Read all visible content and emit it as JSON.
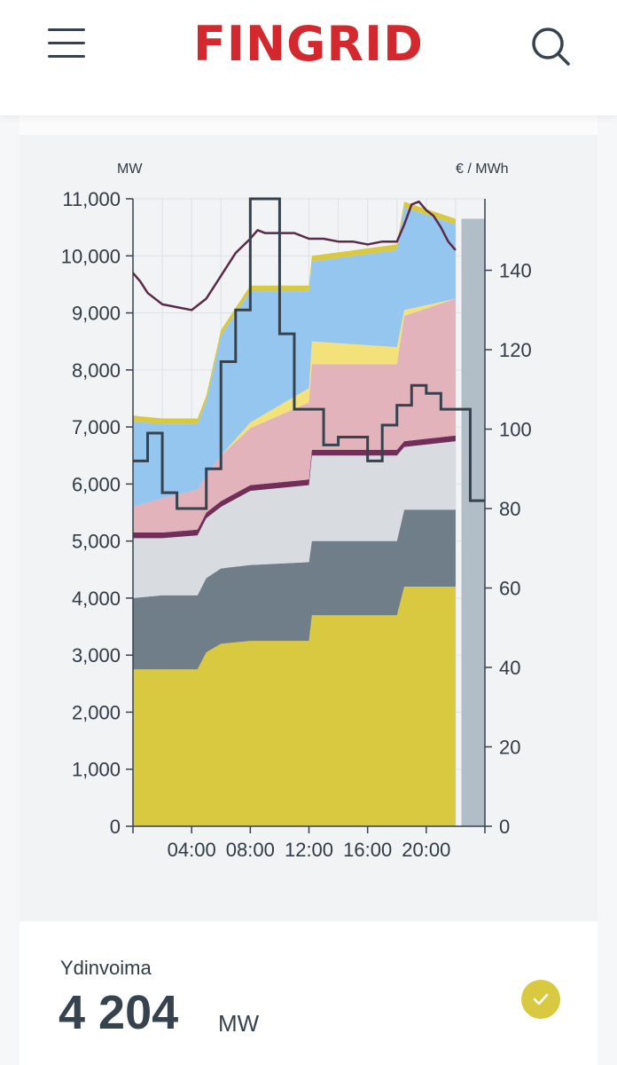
{
  "header": {
    "logo_text": "FINGRID",
    "menu_icon": "hamburger-menu-icon",
    "search_icon": "search-icon"
  },
  "chart_labels": {
    "left_unit": "MW",
    "right_unit": "€ / MWh"
  },
  "chart_data": {
    "type": "area",
    "x_unit": "hour of day",
    "x_ticks": [
      4,
      8,
      12,
      16,
      20
    ],
    "x_tick_labels": [
      "04:00",
      "08:00",
      "12:00",
      "16:00",
      "20:00"
    ],
    "x_range": [
      0,
      24
    ],
    "y_left_ticks": [
      "0",
      "1,000",
      "2,000",
      "3,000",
      "4,000",
      "5,000",
      "6,000",
      "7,000",
      "8,000",
      "9,000",
      "10,000",
      "11,000"
    ],
    "y_left_range": [
      0,
      11000
    ],
    "y_right_ticks": [
      "0",
      "20",
      "40",
      "60",
      "80",
      "100",
      "120",
      "140"
    ],
    "y_right_range": [
      0,
      158
    ],
    "grid": true,
    "x": [
      0,
      2,
      4.4,
      5,
      6,
      8,
      12,
      12.2,
      18,
      18.5,
      22
    ],
    "stack": [
      {
        "color": "#d9c941",
        "values": [
          2750,
          2750,
          2750,
          3050,
          3200,
          3250,
          3250,
          3700,
          3700,
          4200,
          4200
        ]
      },
      {
        "color": "#6f7e88",
        "values": [
          1250,
          1300,
          1300,
          1300,
          1320,
          1330,
          1380,
          1300,
          1300,
          1350,
          1350
        ]
      },
      {
        "color": "#d8dbe0",
        "values": [
          1050,
          1000,
          1050,
          1050,
          1080,
          1300,
          1350,
          1500,
          1500,
          1100,
          1200
        ]
      },
      {
        "color": "#712e5a",
        "values": [
          100,
          100,
          100,
          100,
          100,
          100,
          100,
          100,
          100,
          100,
          100
        ]
      },
      {
        "color": "#e2b3bb",
        "values": [
          450,
          600,
          700,
          650,
          800,
          1000,
          1350,
          1500,
          1500,
          2200,
          2400
        ]
      },
      {
        "color": "#f3e27a",
        "values": [
          0,
          0,
          0,
          0,
          0,
          100,
          250,
          400,
          300,
          100,
          0
        ]
      },
      {
        "color": "#95c6ef",
        "values": [
          1500,
          1300,
          1150,
          1300,
          2100,
          2300,
          1700,
          1400,
          1700,
          1800,
          1300
        ]
      },
      {
        "color": "#d9c941",
        "values": [
          100,
          100,
          100,
          100,
          100,
          100,
          100,
          100,
          100,
          100,
          100
        ]
      }
    ],
    "consumption": {
      "color": "#5a2a4a",
      "x": [
        0,
        0.5,
        1,
        2,
        3,
        4,
        5,
        6,
        7,
        8,
        8.5,
        9,
        10,
        11,
        12,
        13,
        14,
        15,
        16,
        17,
        18,
        18.5,
        19,
        19.5,
        20,
        20.5,
        21,
        21.5,
        22
      ],
      "values": [
        9700,
        9550,
        9350,
        9150,
        9100,
        9050,
        9250,
        9650,
        10050,
        10300,
        10450,
        10400,
        10400,
        10400,
        10300,
        10300,
        10250,
        10250,
        10200,
        10250,
        10250,
        10550,
        10900,
        10950,
        10800,
        10700,
        10500,
        10250,
        10100
      ]
    },
    "price": {
      "color": "#36424e",
      "x": [
        0,
        1,
        2,
        3,
        4,
        5,
        6,
        7,
        8,
        9,
        10,
        11,
        12,
        13,
        14,
        15,
        16,
        17,
        18,
        19,
        20,
        21,
        22,
        23,
        24
      ],
      "values": [
        92,
        99,
        84,
        80,
        80,
        90,
        117,
        130,
        158,
        158,
        124,
        105,
        105,
        96,
        98,
        98,
        92,
        101,
        106,
        111,
        109,
        105,
        105,
        82,
        82
      ]
    },
    "forecast": {
      "color": "#b1bec8",
      "from_x": 22.4,
      "to_x": 24,
      "top_value": 10650
    }
  },
  "info": {
    "title": "Ydinvoima",
    "value": "4 204",
    "unit": "MW",
    "check_icon": "check-icon",
    "color": "#d9c941"
  }
}
